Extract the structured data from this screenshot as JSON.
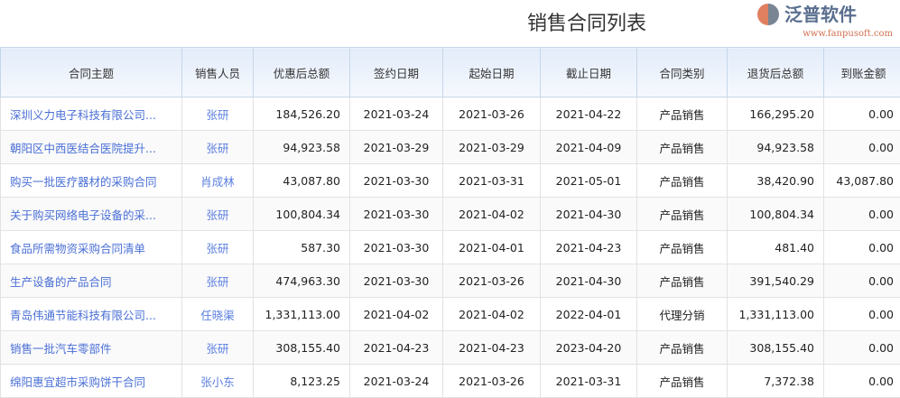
{
  "title": "销售合同列表",
  "columns": [
    "合同主题",
    "销售人员",
    "优惠后总额",
    "签约日期",
    "起始日期",
    "截止日期",
    "合同类别",
    "退货后总额",
    "到账金额"
  ],
  "rows": [
    [
      "深圳义力电子科技有限公司...",
      "张研",
      "184,526.20",
      "2021-03-24",
      "2021-03-26",
      "2021-04-22",
      "产品销售",
      "166,295.20",
      "0.00"
    ],
    [
      "朝阳区中西医结合医院提升...",
      "张研",
      "94,923.58",
      "2021-03-29",
      "2021-03-29",
      "2021-04-09",
      "产品销售",
      "94,923.58",
      "0.00"
    ],
    [
      "购买一批医疗器材的采购合同",
      "肖成林",
      "43,087.80",
      "2021-03-30",
      "2021-03-31",
      "2021-05-01",
      "产品销售",
      "38,420.90",
      "43,087.80"
    ],
    [
      "关于购买网络电子设备的采...",
      "张研",
      "100,804.34",
      "2021-03-30",
      "2021-04-02",
      "2021-04-30",
      "产品销售",
      "100,804.34",
      "0.00"
    ],
    [
      "食品所需物资采购合同清单",
      "张研",
      "587.30",
      "2021-03-30",
      "2021-04-01",
      "2021-04-23",
      "产品销售",
      "481.40",
      "0.00"
    ],
    [
      "生产设备的产品合同",
      "张研",
      "474,963.30",
      "2021-03-30",
      "2021-03-26",
      "2021-04-30",
      "产品销售",
      "391,540.29",
      "0.00"
    ],
    [
      "青岛伟通节能科技有限公司...",
      "任晓渠",
      "1,331,113.00",
      "2021-04-02",
      "2021-04-02",
      "2022-04-01",
      "代理分销",
      "1,331,113.00",
      "0.00"
    ],
    [
      "销售一批汽车零部件",
      "张研",
      "308,155.40",
      "2021-04-23",
      "2021-04-23",
      "2023-04-20",
      "产品销售",
      "308,155.40",
      "0.00"
    ],
    [
      "绵阳惠宜超市采购饼干合同",
      "张小东",
      "8,123.25",
      "2021-03-24",
      "2021-03-26",
      "2021-03-31",
      "产品销售",
      "7,372.38",
      "0.00"
    ]
  ],
  "watermark": {
    "text": "泛普软件",
    "url": "www.fanpusoft.com"
  }
}
